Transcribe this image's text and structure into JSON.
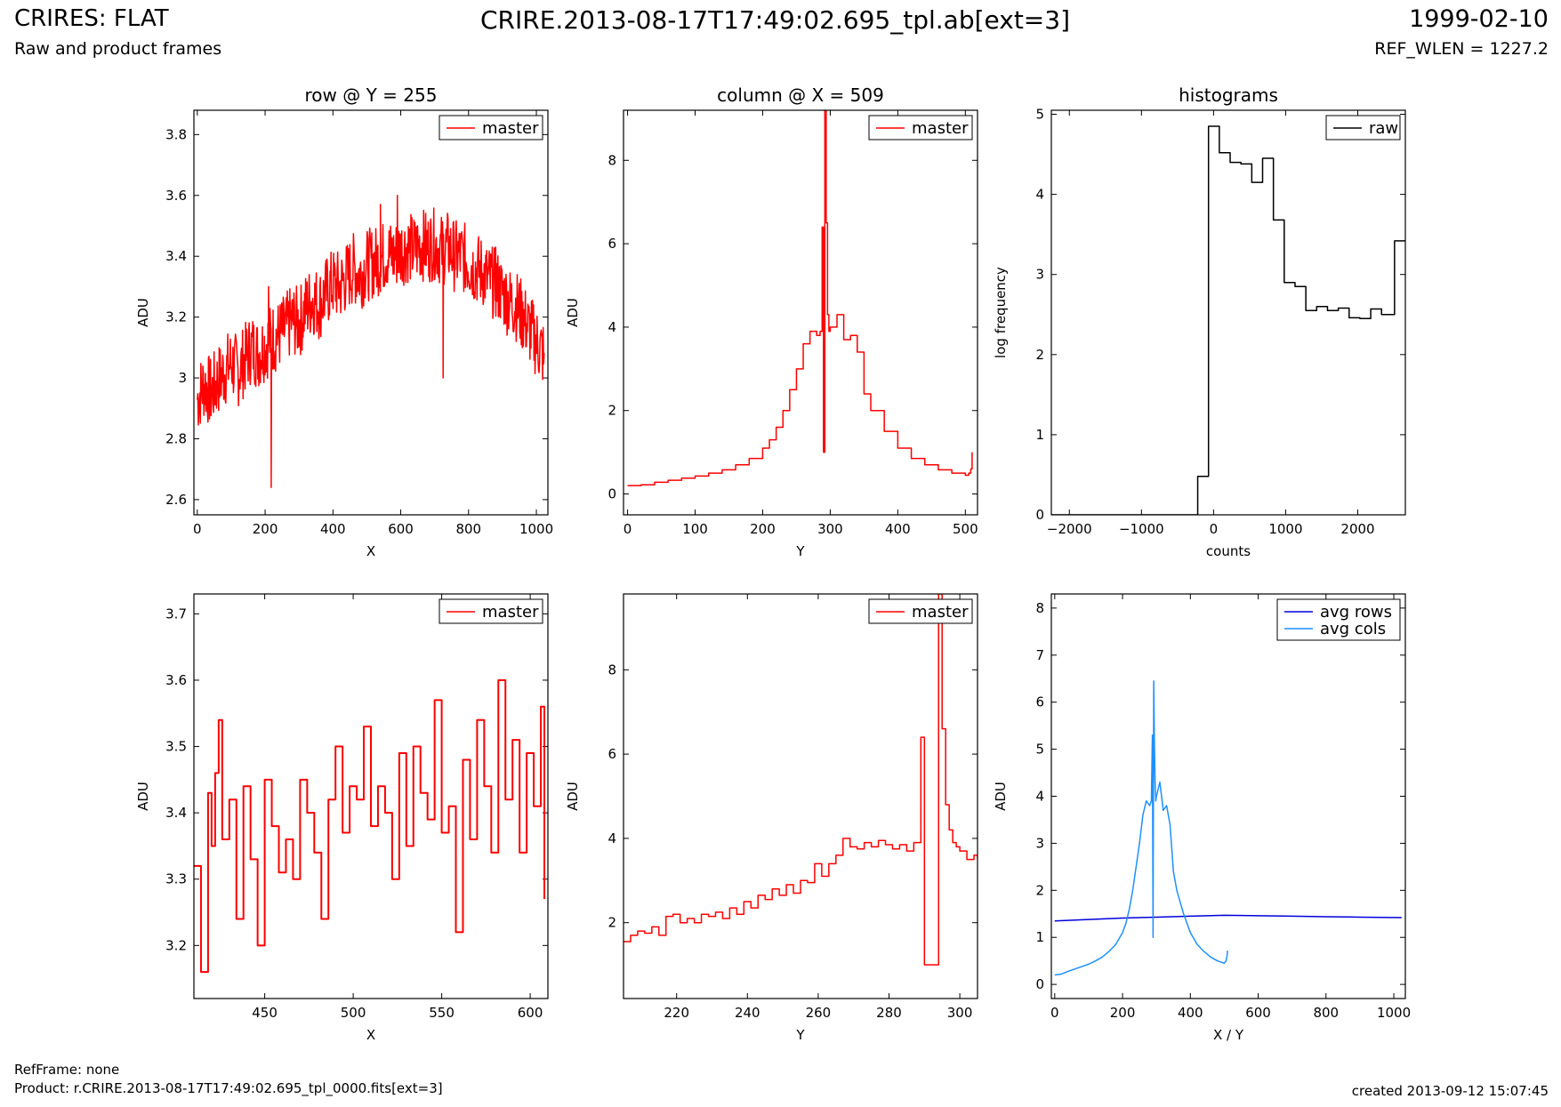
{
  "header": {
    "title": "CRIRES: FLAT",
    "subtitle": "Raw and product frames",
    "center_title": "CRIRE.2013-08-17T17:49:02.695_tpl.ab[ext=3]",
    "date": "1999-02-10",
    "ref_wlen": "REF_WLEN = 1227.2"
  },
  "footer": {
    "ref_frame": "RefFrame: none",
    "product": "Product: r.CRIRE.2013-08-17T17:49:02.695_tpl_0000.fits[ext=3]",
    "created": "created 2013-09-12 15:07:45"
  },
  "colors": {
    "red": "#ff0000",
    "black": "#000000",
    "avg_rows": "#0000dd",
    "avg_cols": "#1e90ff"
  },
  "chart_data": [
    {
      "type": "line",
      "title": "row @ Y = 255",
      "xlabel": "X",
      "ylabel": "ADU",
      "xlim": [
        -10,
        1034
      ],
      "ylim": [
        2.55,
        3.88
      ],
      "xticks": [
        0,
        200,
        400,
        600,
        800,
        1000
      ],
      "yticks": [
        2.6,
        2.8,
        3.0,
        3.2,
        3.4,
        3.6,
        3.8
      ],
      "legend": "top-right",
      "series": [
        {
          "name": "master",
          "color": "#ff0000",
          "step": false,
          "x": [
            0,
            20,
            40,
            60,
            80,
            100,
            120,
            140,
            160,
            180,
            200,
            220,
            240,
            260,
            280,
            300,
            320,
            340,
            360,
            380,
            400,
            420,
            440,
            460,
            480,
            500,
            520,
            540,
            560,
            580,
            600,
            620,
            640,
            660,
            680,
            700,
            720,
            740,
            760,
            780,
            800,
            820,
            840,
            860,
            880,
            900,
            920,
            940,
            960,
            980,
            1000,
            1020,
            1023
          ],
          "y": [
            2.93,
            2.98,
            2.95,
            2.99,
            3.02,
            3.05,
            3.02,
            3.06,
            3.1,
            3.08,
            3.11,
            3.13,
            3.14,
            3.16,
            3.19,
            3.18,
            3.23,
            3.26,
            3.24,
            3.28,
            3.31,
            3.3,
            3.33,
            3.36,
            3.34,
            3.37,
            3.38,
            3.39,
            3.41,
            3.4,
            3.42,
            3.43,
            3.42,
            3.44,
            3.43,
            3.44,
            3.42,
            3.43,
            3.4,
            3.4,
            3.38,
            3.36,
            3.35,
            3.32,
            3.31,
            3.28,
            3.25,
            3.24,
            3.2,
            3.16,
            3.12,
            3.08,
            3.01
          ],
          "peak_x": [
            210,
            218,
            540,
            590,
            725,
            880,
            960
          ],
          "peak_y": [
            3.3,
            2.64,
            3.57,
            3.6,
            3.0,
            3.43,
            3.25
          ]
        }
      ]
    },
    {
      "type": "line",
      "title": "column @ X = 509",
      "xlabel": "Y",
      "ylabel": "ADU",
      "xlim": [
        -6,
        518
      ],
      "ylim": [
        -0.5,
        9.2
      ],
      "xticks": [
        0,
        100,
        200,
        300,
        400,
        500
      ],
      "yticks": [
        0,
        2,
        4,
        6,
        8
      ],
      "legend": "top-right",
      "series": [
        {
          "name": "master",
          "color": "#ff0000",
          "step": true,
          "x": [
            0,
            20,
            40,
            60,
            80,
            100,
            120,
            140,
            160,
            180,
            200,
            210,
            220,
            230,
            240,
            250,
            260,
            270,
            280,
            285,
            288,
            290,
            292,
            294,
            296,
            298,
            300,
            310,
            320,
            330,
            340,
            350,
            360,
            380,
            400,
            420,
            440,
            460,
            480,
            500,
            505,
            508,
            510
          ],
          "y": [
            0.2,
            0.22,
            0.28,
            0.33,
            0.38,
            0.43,
            0.5,
            0.58,
            0.7,
            0.85,
            1.1,
            1.3,
            1.6,
            2.0,
            2.5,
            3.0,
            3.6,
            3.9,
            3.8,
            3.9,
            6.4,
            1.0,
            9.2,
            6.5,
            4.3,
            3.9,
            4.0,
            4.3,
            3.7,
            3.8,
            3.4,
            2.4,
            2.0,
            1.5,
            1.1,
            0.85,
            0.7,
            0.58,
            0.5,
            0.45,
            0.5,
            0.6,
            1.0
          ]
        }
      ]
    },
    {
      "type": "line",
      "title": "histograms",
      "xlabel": "counts",
      "ylabel": "log frequency",
      "xlim": [
        -2250,
        2660
      ],
      "ylim": [
        0,
        5.05
      ],
      "xticks": [
        -2000,
        -1000,
        0,
        1000,
        2000
      ],
      "xtick_labels": [
        "−2000",
        "−1000",
        "0",
        "1000",
        "2000"
      ],
      "yticks": [
        0,
        1,
        2,
        3,
        4,
        5
      ],
      "legend": "top-right",
      "series": [
        {
          "name": "raw",
          "color": "#000000",
          "step": true,
          "bin_edges": [
            -2250,
            -220,
            -70,
            80,
            230,
            380,
            530,
            680,
            830,
            980,
            1130,
            1280,
            1430,
            1580,
            1730,
            1880,
            2030,
            2180,
            2330,
            2510,
            2660
          ],
          "values": [
            0,
            0.48,
            4.85,
            4.52,
            4.4,
            4.38,
            4.15,
            4.45,
            3.68,
            2.9,
            2.85,
            2.55,
            2.6,
            2.55,
            2.58,
            2.46,
            2.45,
            2.57,
            2.5,
            3.42
          ]
        }
      ]
    },
    {
      "type": "line",
      "title": "",
      "xlabel": "X",
      "ylabel": "ADU",
      "xlim": [
        410,
        610
      ],
      "ylim": [
        3.12,
        3.73
      ],
      "xticks": [
        450,
        500,
        550,
        600
      ],
      "yticks": [
        3.2,
        3.3,
        3.4,
        3.5,
        3.6,
        3.7
      ],
      "legend": "top-right",
      "series": [
        {
          "name": "master",
          "color": "#ff0000",
          "step": true,
          "x": [
            410,
            414,
            418,
            420,
            422,
            424,
            426,
            430,
            434,
            438,
            442,
            446,
            450,
            454,
            458,
            462,
            466,
            470,
            474,
            478,
            482,
            486,
            490,
            494,
            498,
            502,
            506,
            510,
            514,
            518,
            522,
            526,
            530,
            534,
            538,
            542,
            546,
            550,
            554,
            558,
            562,
            566,
            570,
            574,
            578,
            582,
            586,
            590,
            594,
            598,
            602,
            606,
            608
          ],
          "y": [
            3.32,
            3.16,
            3.43,
            3.35,
            3.46,
            3.54,
            3.36,
            3.42,
            3.24,
            3.44,
            3.33,
            3.2,
            3.45,
            3.38,
            3.31,
            3.36,
            3.3,
            3.45,
            3.4,
            3.34,
            3.24,
            3.42,
            3.5,
            3.37,
            3.44,
            3.42,
            3.53,
            3.38,
            3.44,
            3.4,
            3.3,
            3.49,
            3.35,
            3.5,
            3.43,
            3.39,
            3.57,
            3.37,
            3.41,
            3.22,
            3.48,
            3.36,
            3.54,
            3.44,
            3.34,
            3.6,
            3.42,
            3.51,
            3.34,
            3.49,
            3.41,
            3.56,
            3.27
          ]
        }
      ]
    },
    {
      "type": "line",
      "title": "",
      "xlabel": "Y",
      "ylabel": "ADU",
      "xlim": [
        205,
        305
      ],
      "ylim": [
        0.2,
        9.8
      ],
      "xticks": [
        220,
        240,
        260,
        280,
        300
      ],
      "yticks": [
        2,
        4,
        6,
        8
      ],
      "legend": "top-right",
      "series": [
        {
          "name": "master",
          "color": "#ff0000",
          "step": true,
          "x": [
            205,
            207,
            209,
            211,
            213,
            215,
            217,
            219,
            221,
            223,
            225,
            227,
            229,
            231,
            233,
            235,
            237,
            239,
            241,
            243,
            245,
            247,
            249,
            251,
            253,
            255,
            257,
            259,
            261,
            263,
            265,
            267,
            269,
            271,
            273,
            275,
            277,
            279,
            281,
            283,
            285,
            287,
            289,
            290,
            292,
            294,
            295,
            296,
            297,
            298,
            299,
            300,
            302,
            304,
            305
          ],
          "y": [
            1.55,
            1.7,
            1.8,
            1.75,
            1.9,
            1.7,
            2.15,
            2.2,
            2.0,
            2.1,
            2.0,
            2.2,
            2.15,
            2.25,
            2.1,
            2.35,
            2.2,
            2.5,
            2.35,
            2.65,
            2.55,
            2.8,
            2.65,
            2.9,
            2.7,
            3.0,
            2.95,
            3.4,
            3.1,
            3.4,
            3.6,
            4.0,
            3.8,
            3.75,
            3.9,
            3.8,
            3.95,
            3.85,
            3.75,
            3.85,
            3.7,
            3.9,
            6.4,
            1.0,
            1.0,
            9.8,
            6.6,
            4.8,
            4.2,
            3.9,
            3.8,
            3.7,
            3.5,
            3.6,
            3.5
          ]
        }
      ]
    },
    {
      "type": "line",
      "title": "",
      "xlabel": "X / Y",
      "ylabel": "ADU",
      "xlim": [
        -10,
        1034
      ],
      "ylim": [
        -0.3,
        8.3
      ],
      "xticks": [
        0,
        200,
        400,
        600,
        800,
        1000
      ],
      "yticks": [
        0,
        1,
        2,
        3,
        4,
        5,
        6,
        7,
        8
      ],
      "legend": "top-right",
      "series": [
        {
          "name": "avg rows",
          "color": "#0000dd",
          "step": false,
          "x": [
            0,
            100,
            200,
            300,
            400,
            500,
            600,
            700,
            800,
            900,
            1023
          ],
          "y": [
            1.35,
            1.38,
            1.41,
            1.43,
            1.45,
            1.47,
            1.46,
            1.45,
            1.44,
            1.43,
            1.42
          ]
        },
        {
          "name": "avg cols",
          "color": "#1e90ff",
          "step": false,
          "x": [
            0,
            20,
            40,
            60,
            80,
            100,
            120,
            140,
            160,
            180,
            200,
            210,
            220,
            230,
            240,
            250,
            260,
            270,
            280,
            285,
            288,
            290,
            292,
            294,
            296,
            298,
            300,
            310,
            320,
            330,
            340,
            350,
            360,
            380,
            400,
            420,
            440,
            460,
            480,
            500,
            505,
            508,
            510
          ],
          "y": [
            0.2,
            0.22,
            0.28,
            0.33,
            0.38,
            0.43,
            0.5,
            0.58,
            0.7,
            0.85,
            1.1,
            1.3,
            1.6,
            2.0,
            2.5,
            3.0,
            3.6,
            3.9,
            3.8,
            3.9,
            5.3,
            1.0,
            6.45,
            5.1,
            4.3,
            3.9,
            4.0,
            4.3,
            3.7,
            3.8,
            3.4,
            2.4,
            2.0,
            1.5,
            1.1,
            0.85,
            0.7,
            0.58,
            0.5,
            0.45,
            0.5,
            0.6,
            0.72
          ]
        }
      ]
    }
  ]
}
